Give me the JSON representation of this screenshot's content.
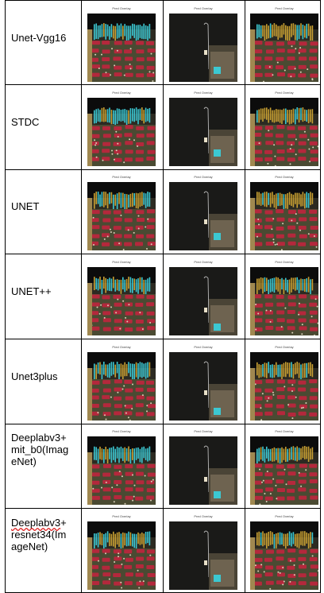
{
  "rows": [
    {
      "label": [
        "Unet-Vgg16"
      ],
      "captions": [
        "Pred Overlay",
        "Pred Overlay",
        "Pred Overlay"
      ]
    },
    {
      "label": [
        "STDC"
      ],
      "captions": [
        "Pred Overlay",
        "Pred Overlay",
        "Pred Overlay"
      ]
    },
    {
      "label": [
        "UNET"
      ],
      "captions": [
        "Pred Overlay",
        "Pred Overlay",
        "Pred Overlay"
      ]
    },
    {
      "label": [
        "UNET++"
      ],
      "captions": [
        "Pred Overlay",
        "Pred Overlay",
        "Pred Overlay"
      ]
    },
    {
      "label": [
        "Unet3plus"
      ],
      "captions": [
        "Pred Overlay",
        "Pred Overlay",
        "Pred Overlay"
      ]
    },
    {
      "label": [
        "Deeplabv3+",
        "mit_b0(Imag",
        "eNet)"
      ],
      "captions": [
        "Pred Overlay",
        "Pred Overlay",
        "Pred Overlay"
      ]
    },
    {
      "label": [
        "Deeplabv3+",
        "resnet34(Im",
        "ageNet)"
      ],
      "spell_flag_word": "Deeplabv3",
      "captions": [
        "Pred Overlay",
        "Pred Overlay",
        "Pred Overlay"
      ]
    }
  ],
  "colors": {
    "board_red": "#b4283c",
    "board_teal": "#3cc8d2",
    "background_black": "#141414",
    "gold": "#c8a032"
  }
}
